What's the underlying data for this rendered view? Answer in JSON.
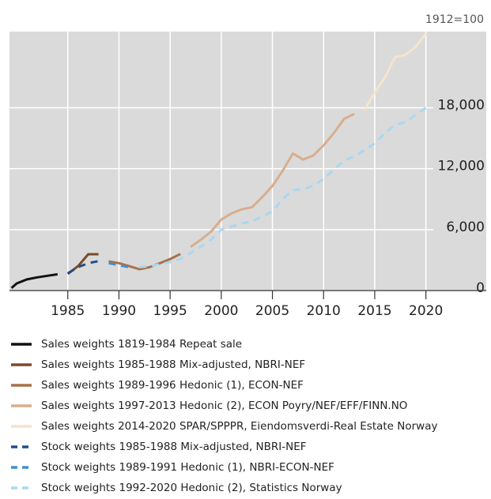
{
  "chart_data": {
    "type": "line",
    "annotation": "1912=100",
    "xlim": [
      1979.3,
      2025.9
    ],
    "xticks": [
      1985,
      1990,
      1995,
      2000,
      2005,
      2010,
      2015,
      2020
    ],
    "ylim": [
      0,
      25500
    ],
    "yticks": [
      0,
      {
        "value": 6000,
        "label": "6,000"
      },
      {
        "value": 12000,
        "label": "12,000"
      },
      {
        "value": 18000,
        "label": "18,000"
      }
    ],
    "grid": true,
    "series": [
      {
        "name": "Sales weights 1819-1984 Repeat sale",
        "color": "#111111",
        "dash": false,
        "x": [
          1979.5,
          1980,
          1981,
          1982,
          1983,
          1984
        ],
        "values": [
          250,
          700,
          1100,
          1300,
          1450,
          1600
        ]
      },
      {
        "name": "Sales weights 1985-1988 Mix-adjusted, NBRI-NEF",
        "color": "#7a4a2a",
        "dash": false,
        "x": [
          1985,
          1986,
          1987,
          1988
        ],
        "values": [
          1640,
          2400,
          3580,
          3580
        ]
      },
      {
        "name": "Sales weights 1989-1996 Hedonic (1), ECON-NEF",
        "color": "#a8714a",
        "dash": false,
        "x": [
          1989,
          1990,
          1991,
          1992,
          1993,
          1994,
          1995,
          1996
        ],
        "values": [
          2880,
          2700,
          2400,
          2100,
          2300,
          2700,
          3100,
          3600
        ]
      },
      {
        "name": "Sales weights 1997-2013 Hedonic (2), ECON Poyry/NEF/EFF/FINN.NO",
        "color": "#d8ae8e",
        "dash": false,
        "x": [
          1997,
          1998,
          1999,
          2000,
          2001,
          2002,
          2003,
          2004,
          2005,
          2006,
          2007,
          2008,
          2009,
          2010,
          2011,
          2012,
          2013
        ],
        "values": [
          4300,
          5000,
          5800,
          7000,
          7600,
          8000,
          8200,
          9200,
          10300,
          11800,
          13500,
          12900,
          13300,
          14300,
          15500,
          16900,
          17400
        ]
      },
      {
        "name": "Sales weights 2014-2020 SPAR/SPPPR, Eiendomsverdi-Real Estate Norway",
        "color": "#f5e4cc",
        "dash": false,
        "x": [
          2014,
          2015,
          2016,
          2017,
          2018,
          2019,
          2020
        ],
        "values": [
          17800,
          19500,
          21000,
          23000,
          23200,
          24000,
          25300
        ]
      },
      {
        "name": "Stock weights 1985-1988 Mix-adjusted, NBRI-NEF",
        "color": "#1d4f8a",
        "dash": true,
        "x": [
          1985,
          1986,
          1987,
          1988
        ],
        "values": [
          1700,
          2300,
          2700,
          2900
        ]
      },
      {
        "name": "Stock weights 1989-1991 Hedonic (1), NBRI-ECON-NEF",
        "color": "#3f8fd0",
        "dash": true,
        "x": [
          1989,
          1990,
          1991
        ],
        "values": [
          2700,
          2500,
          2300
        ]
      },
      {
        "name": "Stock weights 1992-2020 Hedonic (2), Statistics Norway",
        "color": "#a9d8f0",
        "dash": true,
        "x": [
          1992,
          1993,
          1994,
          1995,
          1996,
          1997,
          1998,
          1999,
          2000,
          2001,
          2002,
          2003,
          2004,
          2005,
          2006,
          2007,
          2008,
          2009,
          2010,
          2011,
          2012,
          2013,
          2014,
          2015,
          2016,
          2017,
          2018,
          2019,
          2020
        ],
        "values": [
          2300,
          2400,
          2600,
          2800,
          3100,
          3700,
          4300,
          5000,
          6000,
          6300,
          6600,
          6800,
          7300,
          7800,
          9000,
          9900,
          10000,
          10300,
          11000,
          11900,
          12800,
          13200,
          13800,
          14500,
          15500,
          16300,
          16600,
          17300,
          18000
        ]
      }
    ]
  }
}
